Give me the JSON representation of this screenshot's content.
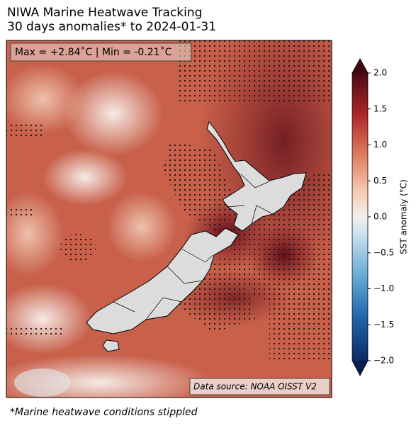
{
  "header": {
    "title_lines": [
      "NIWA Marine Heatwave Tracking",
      "30 days anomalies* to 2024-01-31"
    ]
  },
  "map": {
    "stats_label": "Max = +2.84˚C | Min = -0.21˚C",
    "source_label": "Data source: NOAA OISST V2"
  },
  "colorbar": {
    "label": "SST anomaly (°C)",
    "lim": [
      -2,
      2
    ],
    "ticks": [
      {
        "value": 2,
        "label": "2.0"
      },
      {
        "value": 1.5,
        "label": "1.5"
      },
      {
        "value": 1,
        "label": "1.0"
      },
      {
        "value": 0.5,
        "label": "0.5"
      },
      {
        "value": 0,
        "label": "0.0"
      },
      {
        "value": -0.5,
        "label": "−0.5"
      },
      {
        "value": -1,
        "label": "−1.0"
      },
      {
        "value": -1.5,
        "label": "−1.5"
      },
      {
        "value": -2,
        "label": "−2.0"
      }
    ]
  },
  "footnote": "*Marine heatwave conditions stippled"
}
